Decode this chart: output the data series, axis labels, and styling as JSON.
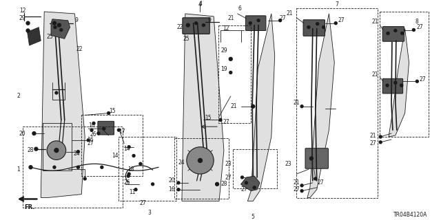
{
  "bg_color": "#ffffff",
  "line_color": "#1a1a1a",
  "diagram_id": "TR04B4120A",
  "figsize": [
    6.4,
    3.2
  ],
  "dpi": 100
}
